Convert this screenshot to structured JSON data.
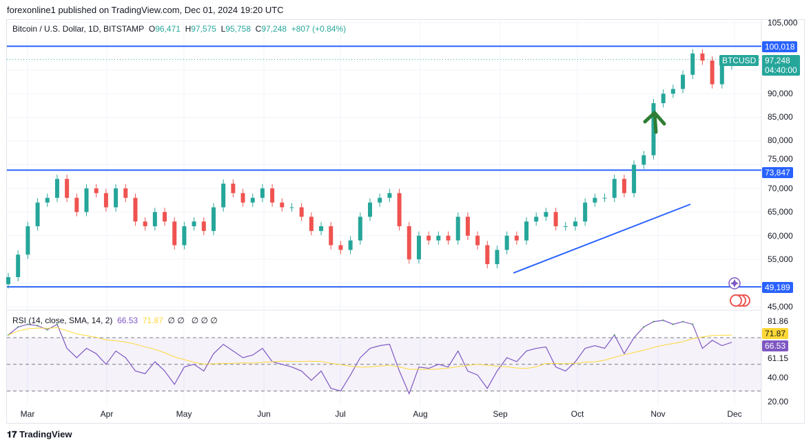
{
  "publisher_line": "forexonline1 published on TradingView.com, Dec 01, 2024 19:20 UTC",
  "legend": {
    "title": "Bitcoin / U.S. Dollar, 1D, BITSTAMP",
    "o_label": "O",
    "o": "96,471",
    "h_label": "H",
    "h": "97,575",
    "l_label": "L",
    "l": "95,758",
    "c_label": "C",
    "c": "97,248",
    "change": "+807 (+0.84%)"
  },
  "rsi_legend": {
    "title": "RSI (14, close, SMA, 14, 2)",
    "rsi": "66.53",
    "sma": "71.87",
    "empty": "∅ ∅   ∅ ∅ ∅"
  },
  "price_axis": [
    "105,000",
    "90,000",
    "85,000",
    "80,000",
    "75,000",
    "70,000",
    "65,000",
    "60,000",
    "55,000",
    "45,000"
  ],
  "rsi_axis": [
    "81.86",
    "61.15",
    "40.00",
    "20.00"
  ],
  "tags": {
    "level_high": "100,018",
    "level_mid": "73,847",
    "level_low": "49,189",
    "symbol": "BTCUSD",
    "last_price": "97,248",
    "countdown": "04:40:00",
    "rsi_value": "66.53",
    "rsi_sma": "71.87"
  },
  "months": [
    "Mar",
    "Apr",
    "May",
    "Jun",
    "Jul",
    "Aug",
    "Sep",
    "Oct",
    "Nov",
    "Dec"
  ],
  "logo": "TradingView",
  "colors": {
    "up": "#26a69a",
    "down": "#ef5350",
    "level_line": "#2962ff",
    "rsi": "#7e57c2",
    "rsi_sma": "#fdd835",
    "arrow": "#2e7d32"
  },
  "chart_data": [
    {
      "type": "candlestick",
      "symbol": "BTCUSD",
      "ylim": [
        45000,
        105000
      ],
      "horizontal_levels": [
        100018,
        73847,
        49189
      ],
      "closes": [
        51250,
        56000,
        62000,
        67000,
        68000,
        72000,
        68000,
        65000,
        70000,
        69000,
        66000,
        70000,
        68000,
        63000,
        62000,
        65000,
        63000,
        58000,
        62000,
        63000,
        61000,
        66000,
        71000,
        69000,
        67000,
        68000,
        70000,
        67000,
        66000,
        66000,
        64000,
        61000,
        62000,
        58000,
        57000,
        59000,
        64000,
        67000,
        68000,
        69000,
        62000,
        55000,
        60000,
        59000,
        60000,
        59000,
        64000,
        60000,
        58000,
        54000,
        57000,
        60000,
        59000,
        63000,
        64000,
        65000,
        62000,
        62000,
        63000,
        67000,
        68000,
        68000,
        72000,
        69000,
        75000,
        77000,
        88000,
        90000,
        91000,
        94000,
        98500,
        97000,
        92000,
        96000,
        97248
      ]
    },
    {
      "type": "line",
      "name": "RSI",
      "ylim": [
        20,
        90
      ],
      "bands": [
        70,
        50,
        30
      ],
      "values": [
        72,
        78,
        80,
        79,
        76,
        80,
        62,
        55,
        62,
        58,
        50,
        60,
        55,
        45,
        43,
        52,
        45,
        35,
        48,
        50,
        45,
        58,
        65,
        60,
        55,
        57,
        62,
        52,
        50,
        48,
        45,
        38,
        45,
        32,
        30,
        42,
        55,
        62,
        64,
        65,
        45,
        28,
        48,
        47,
        50,
        48,
        60,
        45,
        42,
        32,
        45,
        55,
        52,
        60,
        62,
        63,
        48,
        45,
        52,
        62,
        64,
        62,
        72,
        58,
        70,
        78,
        82,
        83,
        80,
        82,
        80,
        62,
        68,
        64,
        66.53
      ]
    }
  ]
}
